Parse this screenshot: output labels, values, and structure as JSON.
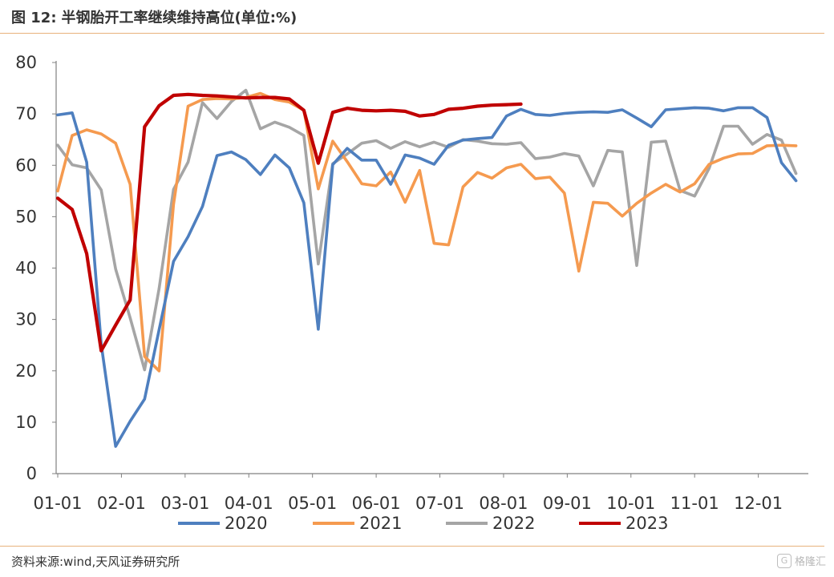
{
  "header": {
    "title_prefix": "图 12:",
    "title_text": "半钢胎开工率继续维持高位(单位:%)"
  },
  "footer": {
    "source": "资料来源:wind,天风证券研究所",
    "watermark": "格隆汇"
  },
  "chart_data": {
    "type": "line",
    "title": "半钢胎开工率继续维持高位(单位:%)",
    "xlabel": "",
    "ylabel": "",
    "ylim": [
      0,
      80
    ],
    "yticks": [
      0,
      10,
      20,
      30,
      40,
      50,
      60,
      70,
      80
    ],
    "xlim": [
      1,
      52
    ],
    "xtick_labels": [
      "01-01",
      "02-01",
      "03-01",
      "04-01",
      "05-01",
      "06-01",
      "07-01",
      "08-01",
      "09-01",
      "10-01",
      "11-01",
      "12-01"
    ],
    "xtick_weeks": [
      1,
      5.4,
      9.8,
      14.2,
      18.6,
      23.0,
      27.4,
      31.8,
      36.2,
      40.6,
      45.0,
      49.4
    ],
    "grid": false,
    "legend_position": "bottom",
    "colors": {
      "2020": "#4e7fbf",
      "2021": "#f59a4f",
      "2022": "#a5a5a5",
      "2023": "#c00000"
    },
    "series": [
      {
        "name": "2020",
        "weeks": [
          1,
          2,
          3,
          4,
          5,
          6,
          7,
          8,
          9,
          10,
          11,
          12,
          13,
          14,
          15,
          16,
          17,
          18,
          19,
          20,
          21,
          22,
          23,
          24,
          25,
          26,
          27,
          28,
          29,
          30,
          31,
          32,
          33,
          34,
          35,
          36,
          37,
          38,
          39,
          40,
          41,
          42,
          43,
          44,
          45,
          46,
          47,
          48,
          49,
          50,
          51,
          52
        ],
        "values": [
          69.8,
          70.2,
          60.6,
          25.2,
          5.3,
          10.2,
          14.5,
          28.0,
          41.3,
          46.1,
          52.0,
          61.9,
          62.6,
          61.1,
          58.2,
          62.0,
          59.5,
          52.7,
          28.1,
          60.1,
          63.3,
          61.0,
          61.0,
          56.3,
          62.0,
          61.4,
          60.2,
          63.9,
          64.9,
          65.2,
          65.4,
          69.6,
          70.9,
          69.9,
          69.7,
          70.1,
          70.3,
          70.4,
          70.3,
          70.8,
          69.2,
          67.5,
          70.8,
          71.0,
          71.2,
          71.1,
          70.6,
          71.2,
          71.2,
          69.3,
          60.5,
          57.0
        ]
      },
      {
        "name": "2021",
        "weeks": [
          1,
          2,
          3,
          4,
          5,
          6,
          7,
          8,
          9,
          10,
          11,
          12,
          13,
          14,
          15,
          16,
          17,
          18,
          19,
          20,
          21,
          22,
          23,
          24,
          25,
          26,
          27,
          28,
          29,
          30,
          31,
          32,
          33,
          34,
          35,
          36,
          37,
          38,
          39,
          40,
          41,
          42,
          43,
          44,
          45,
          46,
          47,
          48,
          49,
          50,
          51,
          52
        ],
        "values": [
          55.0,
          65.8,
          66.9,
          66.1,
          64.3,
          56.3,
          22.8,
          20.0,
          52.4,
          71.5,
          72.8,
          73.0,
          72.9,
          73.2,
          74.0,
          72.8,
          72.3,
          70.7,
          55.4,
          64.7,
          60.7,
          56.4,
          56.0,
          58.7,
          52.8,
          59.0,
          44.8,
          44.5,
          55.8,
          58.6,
          57.5,
          59.5,
          60.2,
          57.4,
          57.7,
          54.6,
          39.4,
          52.8,
          52.6,
          50.1,
          52.6,
          54.6,
          56.3,
          54.8,
          56.4,
          60.2,
          61.4,
          62.2,
          62.3,
          63.8,
          63.9,
          63.8
        ]
      },
      {
        "name": "2022",
        "weeks": [
          1,
          2,
          3,
          4,
          5,
          6,
          7,
          8,
          9,
          10,
          11,
          12,
          13,
          14,
          15,
          16,
          17,
          18,
          19,
          20,
          21,
          22,
          23,
          24,
          25,
          26,
          27,
          28,
          29,
          30,
          31,
          32,
          33,
          34,
          35,
          36,
          37,
          38,
          39,
          40,
          41,
          42,
          43,
          44,
          45,
          46,
          47,
          48,
          49,
          50,
          51,
          52
        ],
        "values": [
          63.9,
          60.1,
          59.5,
          55.2,
          39.8,
          30.3,
          20.2,
          36.0,
          55.3,
          60.6,
          72.2,
          69.1,
          72.4,
          74.6,
          67.1,
          68.4,
          67.4,
          65.8,
          40.8,
          60.3,
          62.2,
          64.3,
          64.8,
          63.3,
          64.6,
          63.6,
          64.5,
          63.5,
          65.0,
          64.7,
          64.2,
          64.1,
          64.4,
          61.3,
          61.6,
          62.3,
          61.8,
          56.0,
          62.9,
          62.6,
          40.5,
          64.5,
          64.7,
          55.1,
          54.0,
          59.4,
          67.6,
          67.6,
          64.1,
          66.0,
          64.9,
          58.4
        ]
      },
      {
        "name": "2023",
        "weeks": [
          1,
          2,
          3,
          4,
          5,
          6,
          7,
          8,
          9,
          10,
          11,
          12,
          13,
          14,
          15,
          16,
          17,
          18,
          19,
          20,
          21,
          22,
          23,
          24,
          25,
          26,
          27,
          28,
          29,
          30,
          31,
          32,
          33
        ],
        "values": [
          53.6,
          51.4,
          42.8,
          23.9,
          28.9,
          33.8,
          67.5,
          71.6,
          73.6,
          73.8,
          73.6,
          73.5,
          73.3,
          73.1,
          73.2,
          73.2,
          72.9,
          70.7,
          60.4,
          70.3,
          71.1,
          70.7,
          70.6,
          70.7,
          70.5,
          69.6,
          69.9,
          70.9,
          71.1,
          71.5,
          71.7,
          71.8,
          71.9
        ]
      }
    ]
  }
}
